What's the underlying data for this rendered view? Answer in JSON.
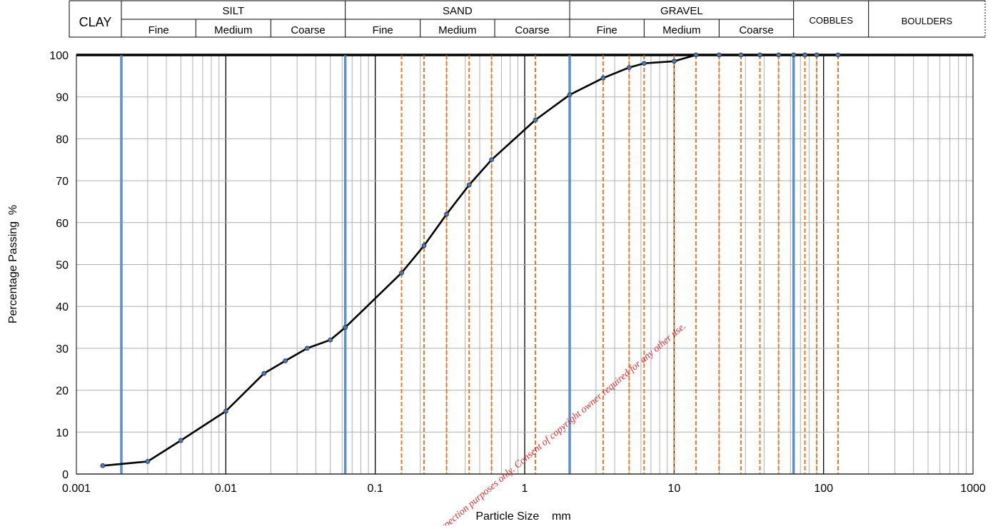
{
  "chart_data": {
    "type": "line",
    "title": "",
    "xlabel": "Particle Size    mm",
    "ylabel": "Percentage Passing  %",
    "x_scale": "log",
    "xlim": [
      0.001,
      1000
    ],
    "ylim": [
      0,
      100
    ],
    "x_tick_labels": [
      "0.001",
      "0.01",
      "0.1",
      "1",
      "10",
      "100",
      "1000"
    ],
    "y_tick_labels": [
      "0",
      "10",
      "20",
      "30",
      "40",
      "50",
      "60",
      "70",
      "80",
      "90",
      "100"
    ],
    "grid": true,
    "legend": "none",
    "classification": {
      "clay": "CLAY",
      "groups": [
        {
          "name": "SILT",
          "subs": [
            "Fine",
            "Medium",
            "Coarse"
          ]
        },
        {
          "name": "SAND",
          "subs": [
            "Fine",
            "Medium",
            "Coarse"
          ]
        },
        {
          "name": "GRAVEL",
          "subs": [
            "Fine",
            "Medium",
            "Coarse"
          ]
        }
      ],
      "cobbles": "COBBLES",
      "boulders": "BOULDERS"
    },
    "boundary_lines_mm": [
      0.002,
      0.063,
      2,
      63
    ],
    "sieve_sizes_mm": [
      0.063,
      0.15,
      0.212,
      0.3,
      0.425,
      0.6,
      1.18,
      3.35,
      5,
      6.3,
      10,
      14,
      20,
      28,
      37.5,
      50,
      63,
      75,
      90,
      125
    ],
    "series": [
      {
        "x": [
          0.0015,
          0.003,
          0.005,
          0.01,
          0.018,
          0.025,
          0.035,
          0.05,
          0.063,
          0.15,
          0.212,
          0.3,
          0.425,
          0.6,
          1.18,
          2,
          3.35,
          5,
          6.3,
          10,
          14,
          20,
          28,
          37.5,
          50,
          63,
          75,
          90,
          125
        ],
        "y": [
          2,
          3,
          8,
          15,
          24,
          27,
          30,
          32,
          35,
          48,
          54.5,
          62,
          69,
          75,
          84.5,
          90.5,
          94.5,
          97,
          98,
          98.5,
          100,
          100,
          100,
          100,
          100,
          100,
          100,
          100,
          100
        ]
      }
    ],
    "colors": {
      "curve": "#000000",
      "boundary": "#5b8fc9",
      "sieve": "#e8792a",
      "grid": "#b0b0b0",
      "decade": "#000000",
      "point": "#4a7ab5"
    }
  },
  "watermark": "For inspection purposes only. Consent of copyright owner required for any other use."
}
